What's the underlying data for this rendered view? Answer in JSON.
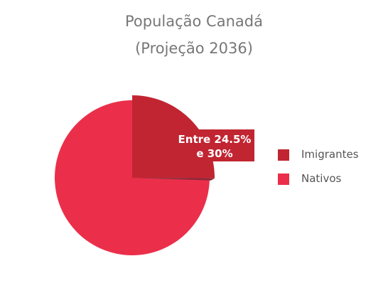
{
  "chart_data": {
    "type": "pie",
    "title": "População Canadá",
    "subtitle": "(Projeção 2036)",
    "labels": [
      "Imigrantes",
      "Nativos"
    ],
    "values": [
      25.1,
      74.9
    ],
    "colors": [
      "#c12531",
      "#eb2f4a"
    ],
    "annotation": {
      "line1": "Entre 24.5%",
      "line2": "e 30%"
    },
    "legend_position": "right"
  }
}
